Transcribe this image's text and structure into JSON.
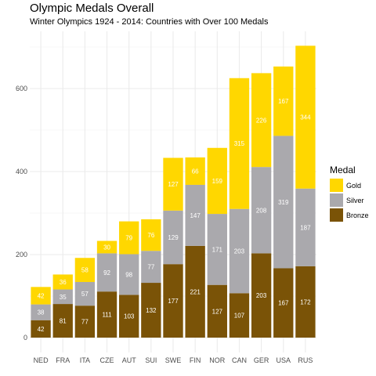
{
  "chart_data": {
    "type": "bar",
    "stacked": true,
    "title": "Olympic Medals Overall",
    "subtitle": "Winter Olympics 1924 - 2014: Countries with Over 100 Medals",
    "categories": [
      "NED",
      "FRA",
      "ITA",
      "CZE",
      "AUT",
      "SUI",
      "SWE",
      "FIN",
      "NOR",
      "CAN",
      "GER",
      "USA",
      "RUS"
    ],
    "series": [
      {
        "name": "Bronze",
        "color": "#7a5307",
        "values": [
          42,
          81,
          77,
          111,
          103,
          132,
          177,
          221,
          127,
          107,
          203,
          167,
          172
        ]
      },
      {
        "name": "Silver",
        "color": "#aaa9ad",
        "values": [
          38,
          35,
          57,
          92,
          98,
          77,
          129,
          147,
          171,
          203,
          208,
          319,
          187
        ]
      },
      {
        "name": "Gold",
        "color": "#ffd700",
        "values": [
          42,
          36,
          58,
          30,
          79,
          76,
          127,
          66,
          159,
          315,
          226,
          167,
          344
        ]
      }
    ],
    "ylim": [
      0,
      720
    ],
    "yticks": [
      0,
      200,
      400,
      600
    ],
    "grid": true,
    "legend": {
      "title": "Medal",
      "position": "right",
      "entries": [
        "Gold",
        "Silver",
        "Bronze"
      ]
    }
  }
}
